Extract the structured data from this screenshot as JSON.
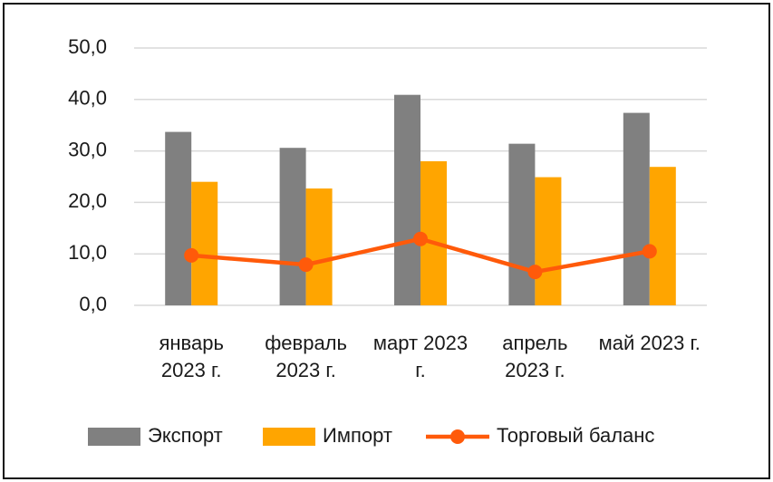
{
  "chart_data": {
    "type": "bar",
    "categories": [
      "январь 2023 г.",
      "февраль 2023 г.",
      "март 2023 г.",
      "апрель 2023 г.",
      "май 2023 г."
    ],
    "series": [
      {
        "name": "Экспорт",
        "color": "#808080",
        "values": [
          33.7,
          30.6,
          40.9,
          31.4,
          37.4
        ]
      },
      {
        "name": "Импорт",
        "color": "#ffa500",
        "values": [
          24.0,
          22.7,
          28.0,
          24.9,
          26.9
        ]
      },
      {
        "name": "Торговый баланс",
        "type": "line",
        "color": "#ff5a0a",
        "values": [
          9.7,
          7.9,
          12.9,
          6.5,
          10.5
        ]
      }
    ],
    "ylim": [
      0,
      50
    ],
    "yticks": [
      {
        "value": 0,
        "label": "0,0"
      },
      {
        "value": 10,
        "label": "10,0"
      },
      {
        "value": 20,
        "label": "20,0"
      },
      {
        "value": 30,
        "label": "30,0"
      },
      {
        "value": 40,
        "label": "40,0"
      },
      {
        "value": 50,
        "label": "50,0"
      }
    ],
    "grid": true,
    "legend": "bottom"
  }
}
